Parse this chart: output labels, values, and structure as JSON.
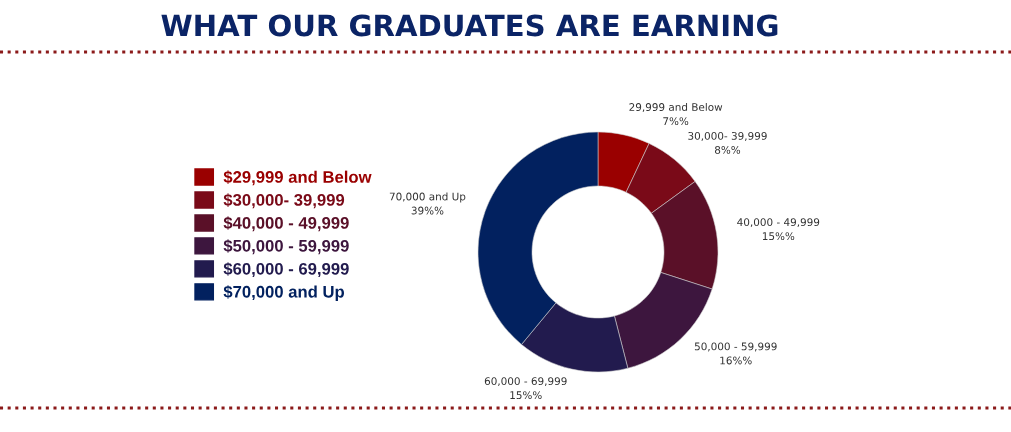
{
  "chart_data": {
    "type": "donut",
    "title": "WHAT OUR GRADUATES ARE EARNING",
    "categories": [
      "$29,999 and Below",
      "$30,000- 39,999",
      "$40,000 - 49,999",
      "$50,000 - 59,999",
      "$60,000 - 69,999",
      "$70,000 and Up"
    ],
    "values": [
      7,
      8,
      15,
      16,
      15,
      39
    ],
    "colors": [
      "#9a0000",
      "#7a0a18",
      "#5a1028",
      "#3d163e",
      "#221b4e",
      "#02215f"
    ],
    "value_labels": [
      "29,999 and Below\n7%%",
      "30,000- 39,999\n8%%",
      "40,000 - 49,999\n15%%",
      "50,000 - 59,999\n16%%",
      "60,000 - 69,999\n15%%",
      "70,000 and Up\n39%%"
    ],
    "legend": "left"
  }
}
